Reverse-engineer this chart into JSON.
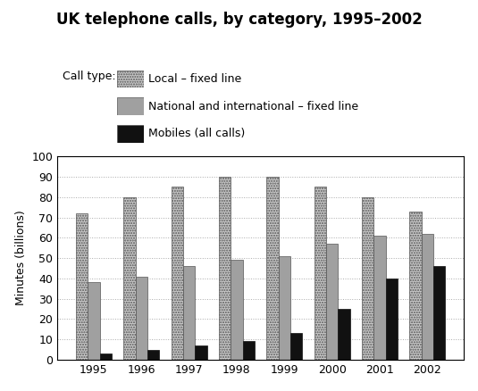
{
  "title": "UK telephone calls, by category, 1995–2002",
  "ylabel": "Minutes (billions)",
  "years": [
    1995,
    1996,
    1997,
    1998,
    1999,
    2000,
    2001,
    2002
  ],
  "local_fixed": [
    72,
    80,
    85,
    90,
    90,
    85,
    80,
    73
  ],
  "national_fixed": [
    38,
    41,
    46,
    49,
    51,
    57,
    61,
    62
  ],
  "mobiles": [
    3,
    5,
    7,
    9,
    13,
    25,
    40,
    46
  ],
  "ylim": [
    0,
    100
  ],
  "yticks": [
    0,
    10,
    20,
    30,
    40,
    50,
    60,
    70,
    80,
    90,
    100
  ],
  "legend_labels": [
    "Local – fixed line",
    "National and international – fixed line",
    "Mobiles (all calls)"
  ],
  "legend_title": "Call type:",
  "color_local": "#c8c8c8",
  "color_national": "#a0a0a0",
  "color_mobiles": "#111111",
  "bar_width": 0.25,
  "title_fontsize": 12,
  "axis_fontsize": 9,
  "legend_fontsize": 9,
  "background_color": "#ffffff"
}
